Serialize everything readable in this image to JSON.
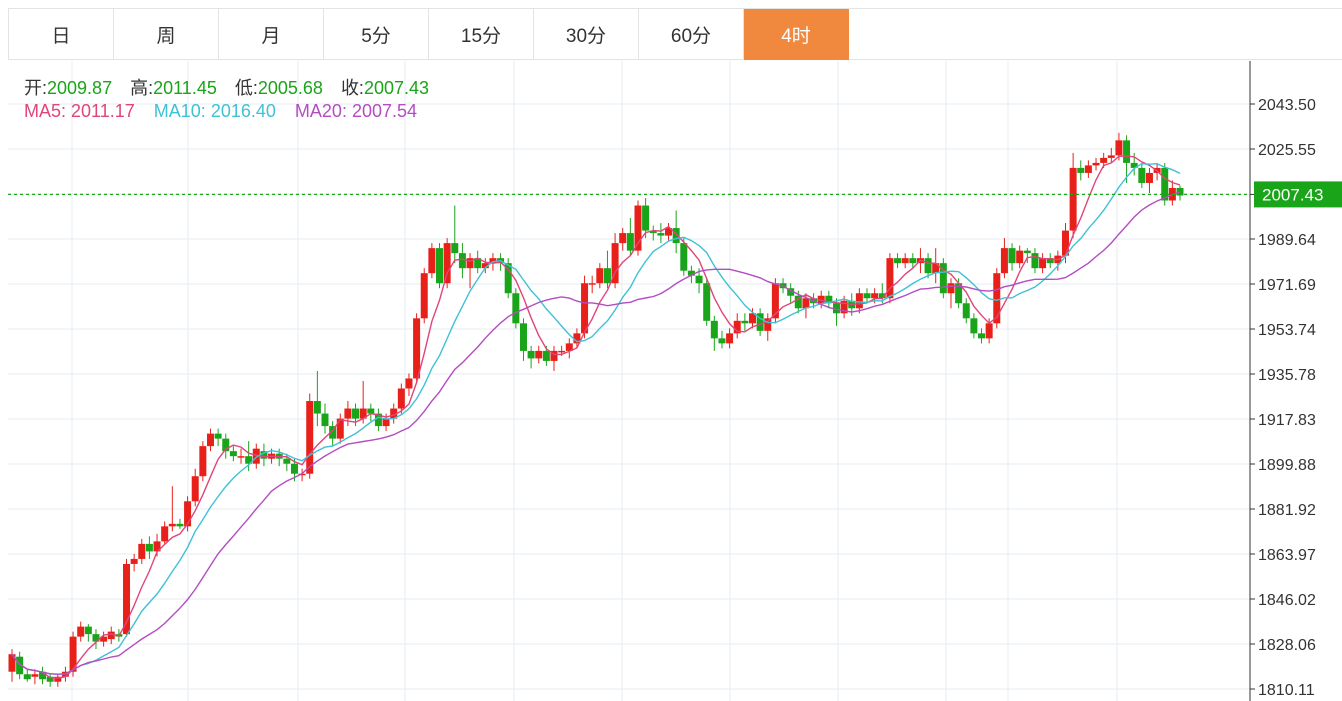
{
  "tabs": [
    {
      "label": "日",
      "active": false
    },
    {
      "label": "周",
      "active": false
    },
    {
      "label": "月",
      "active": false
    },
    {
      "label": "5分",
      "active": false
    },
    {
      "label": "15分",
      "active": false
    },
    {
      "label": "30分",
      "active": false
    },
    {
      "label": "60分",
      "active": false
    },
    {
      "label": "4时",
      "active": true
    }
  ],
  "ohlc": {
    "open_label": "开:",
    "open": "2009.87",
    "high_label": "高:",
    "high": "2011.45",
    "low_label": "低:",
    "low": "2005.68",
    "close_label": "收:",
    "close": "2007.43"
  },
  "ma": {
    "ma5_label": "MA5:",
    "ma5": "2011.17",
    "ma10_label": "MA10:",
    "ma10": "2016.40",
    "ma20_label": "MA20:",
    "ma20": "2007.54"
  },
  "colors": {
    "up": "#e8201a",
    "down": "#1aa41a",
    "ma5": "#e0457a",
    "ma10": "#3fc1d6",
    "ma20": "#b44cc2",
    "grid": "#e5ecf2",
    "active_tab": "#f0883e",
    "price_tag": "#1aa41a"
  },
  "chart_data": {
    "type": "candlestick",
    "yticks": [
      "2043.50",
      "2025.55",
      "2007.43",
      "1989.64",
      "1971.69",
      "1953.74",
      "1935.78",
      "1917.83",
      "1899.88",
      "1881.92",
      "1863.97",
      "1846.02",
      "1828.06",
      "1810.11"
    ],
    "ylim": [
      1808,
      2052
    ],
    "last_price": "2007.43",
    "candles": [
      [
        1817,
        1824,
        1813,
        1826
      ],
      [
        1823,
        1816,
        1814,
        1825
      ],
      [
        1816,
        1814,
        1813,
        1818
      ],
      [
        1815,
        1816,
        1812,
        1818
      ],
      [
        1817,
        1814,
        1812,
        1819
      ],
      [
        1815,
        1813,
        1811,
        1816
      ],
      [
        1813,
        1815,
        1811,
        1816
      ],
      [
        1815,
        1817,
        1813,
        1819
      ],
      [
        1817,
        1831,
        1815,
        1833
      ],
      [
        1831,
        1835,
        1829,
        1837
      ],
      [
        1835,
        1832,
        1829,
        1836
      ],
      [
        1832,
        1829,
        1826,
        1834
      ],
      [
        1829,
        1831,
        1827,
        1833
      ],
      [
        1830,
        1833,
        1828,
        1835
      ],
      [
        1832,
        1831,
        1829,
        1834
      ],
      [
        1832,
        1860,
        1831,
        1862
      ],
      [
        1860,
        1862,
        1857,
        1864
      ],
      [
        1862,
        1868,
        1860,
        1870
      ],
      [
        1868,
        1865,
        1862,
        1871
      ],
      [
        1865,
        1869,
        1863,
        1872
      ],
      [
        1869,
        1875,
        1868,
        1877
      ],
      [
        1875,
        1876,
        1873,
        1891
      ],
      [
        1876,
        1875,
        1874,
        1878
      ],
      [
        1875,
        1885,
        1873,
        1887
      ],
      [
        1885,
        1895,
        1883,
        1898
      ],
      [
        1895,
        1907,
        1893,
        1909
      ],
      [
        1907,
        1912,
        1905,
        1914
      ],
      [
        1912,
        1910,
        1907,
        1914
      ],
      [
        1910,
        1905,
        1902,
        1912
      ],
      [
        1905,
        1903,
        1901,
        1907
      ],
      [
        1903,
        1903,
        1900,
        1906
      ],
      [
        1903,
        1900,
        1897,
        1909
      ],
      [
        1900,
        1906,
        1898,
        1908
      ],
      [
        1905,
        1902,
        1899,
        1908
      ],
      [
        1902,
        1904,
        1900,
        1906
      ],
      [
        1904,
        1902,
        1899,
        1906
      ],
      [
        1902,
        1900,
        1897,
        1904
      ],
      [
        1900,
        1896,
        1893,
        1902
      ],
      [
        1896,
        1896,
        1893,
        1898
      ],
      [
        1896,
        1925,
        1894,
        1928
      ],
      [
        1925,
        1920,
        1915,
        1937
      ],
      [
        1920,
        1915,
        1912,
        1924
      ],
      [
        1915,
        1910,
        1907,
        1917
      ],
      [
        1910,
        1918,
        1908,
        1920
      ],
      [
        1918,
        1922,
        1915,
        1925
      ],
      [
        1922,
        1918,
        1915,
        1924
      ],
      [
        1918,
        1922,
        1916,
        1933
      ],
      [
        1922,
        1920,
        1917,
        1924
      ],
      [
        1920,
        1915,
        1913,
        1922
      ],
      [
        1915,
        1918,
        1913,
        1920
      ],
      [
        1918,
        1922,
        1916,
        1924
      ],
      [
        1922,
        1930,
        1920,
        1932
      ],
      [
        1930,
        1934,
        1927,
        1936
      ],
      [
        1934,
        1958,
        1932,
        1960
      ],
      [
        1958,
        1976,
        1956,
        1978
      ],
      [
        1976,
        1986,
        1974,
        1988
      ],
      [
        1986,
        1972,
        1970,
        1988
      ],
      [
        1972,
        1988,
        1970,
        1990
      ],
      [
        1988,
        1984,
        1980,
        2003
      ],
      [
        1984,
        1978,
        1974,
        1988
      ],
      [
        1978,
        1982,
        1970,
        1984
      ],
      [
        1982,
        1978,
        1976,
        1985
      ],
      [
        1978,
        1980,
        1976,
        1982
      ],
      [
        1980,
        1982,
        1977,
        1984
      ],
      [
        1982,
        1980,
        1977,
        1984
      ],
      [
        1980,
        1968,
        1966,
        1982
      ],
      [
        1968,
        1956,
        1954,
        1970
      ],
      [
        1956,
        1945,
        1941,
        1958
      ],
      [
        1945,
        1942,
        1938,
        1947
      ],
      [
        1942,
        1945,
        1940,
        1947
      ],
      [
        1945,
        1941,
        1939,
        1947
      ],
      [
        1941,
        1945,
        1937,
        1947
      ],
      [
        1945,
        1945,
        1943,
        1947
      ],
      [
        1945,
        1948,
        1942,
        1950
      ],
      [
        1948,
        1952,
        1946,
        1954
      ],
      [
        1952,
        1972,
        1950,
        1975
      ],
      [
        1972,
        1972,
        1968,
        1975
      ],
      [
        1972,
        1978,
        1970,
        1980
      ],
      [
        1978,
        1972,
        1970,
        1985
      ],
      [
        1972,
        1988,
        1970,
        1992
      ],
      [
        1988,
        1992,
        1985,
        1994
      ],
      [
        1992,
        1985,
        1983,
        1998
      ],
      [
        1985,
        2003,
        1983,
        2005
      ],
      [
        2003,
        1993,
        1990,
        2006
      ],
      [
        1993,
        1992,
        1989,
        1995
      ],
      [
        1992,
        1991,
        1988,
        1996
      ],
      [
        1991,
        1994,
        1989,
        1996
      ],
      [
        1994,
        1988,
        1984,
        2001
      ],
      [
        1988,
        1977,
        1975,
        1990
      ],
      [
        1977,
        1975,
        1972,
        1979
      ],
      [
        1975,
        1972,
        1968,
        1978
      ],
      [
        1972,
        1957,
        1955,
        1974
      ],
      [
        1957,
        1950,
        1945,
        1959
      ],
      [
        1950,
        1948,
        1946,
        1953
      ],
      [
        1948,
        1952,
        1946,
        1954
      ],
      [
        1952,
        1957,
        1950,
        1960
      ],
      [
        1957,
        1956,
        1953,
        1960
      ],
      [
        1956,
        1960,
        1954,
        1962
      ],
      [
        1960,
        1953,
        1951,
        1962
      ],
      [
        1953,
        1958,
        1949,
        1960
      ],
      [
        1958,
        1972,
        1956,
        1974
      ],
      [
        1972,
        1970,
        1968,
        1974
      ],
      [
        1970,
        1967,
        1964,
        1972
      ],
      [
        1967,
        1962,
        1960,
        1969
      ],
      [
        1962,
        1966,
        1958,
        1968
      ],
      [
        1966,
        1964,
        1962,
        1968
      ],
      [
        1964,
        1967,
        1962,
        1969
      ],
      [
        1967,
        1964,
        1962,
        1969
      ],
      [
        1964,
        1960,
        1955,
        1966
      ],
      [
        1960,
        1965,
        1958,
        1967
      ],
      [
        1965,
        1962,
        1959,
        1968
      ],
      [
        1962,
        1968,
        1960,
        1970
      ],
      [
        1968,
        1966,
        1964,
        1970
      ],
      [
        1966,
        1968,
        1964,
        1970
      ],
      [
        1968,
        1966,
        1964,
        1972
      ],
      [
        1966,
        1982,
        1964,
        1984
      ],
      [
        1982,
        1980,
        1978,
        1984
      ],
      [
        1980,
        1982,
        1978,
        1984
      ],
      [
        1982,
        1980,
        1978,
        1984
      ],
      [
        1980,
        1982,
        1976,
        1986
      ],
      [
        1982,
        1976,
        1974,
        1984
      ],
      [
        1976,
        1980,
        1972,
        1986
      ],
      [
        1980,
        1968,
        1966,
        1982
      ],
      [
        1968,
        1972,
        1962,
        1974
      ],
      [
        1972,
        1964,
        1962,
        1974
      ],
      [
        1964,
        1958,
        1956,
        1966
      ],
      [
        1958,
        1952,
        1950,
        1960
      ],
      [
        1952,
        1950,
        1948,
        1954
      ],
      [
        1950,
        1956,
        1948,
        1958
      ],
      [
        1956,
        1976,
        1954,
        1978
      ],
      [
        1976,
        1986,
        1974,
        1990
      ],
      [
        1986,
        1980,
        1977,
        1988
      ],
      [
        1980,
        1985,
        1978,
        1987
      ],
      [
        1985,
        1984,
        1980,
        1986
      ],
      [
        1984,
        1978,
        1976,
        1986
      ],
      [
        1978,
        1982,
        1976,
        1984
      ],
      [
        1982,
        1980,
        1978,
        1984
      ],
      [
        1980,
        1983,
        1977,
        1985
      ],
      [
        1983,
        1993,
        1980,
        1996
      ],
      [
        1993,
        2018,
        1990,
        2024
      ],
      [
        2018,
        2016,
        2013,
        2021
      ],
      [
        2016,
        2019,
        2014,
        2021
      ],
      [
        2019,
        2020,
        2017,
        2022
      ],
      [
        2020,
        2022,
        2018,
        2024
      ],
      [
        2022,
        2023,
        2020,
        2026
      ],
      [
        2023,
        2029,
        2021,
        2032
      ],
      [
        2029,
        2020,
        2012,
        2031
      ],
      [
        2020,
        2018,
        2015,
        2024
      ],
      [
        2018,
        2012,
        2010,
        2020
      ],
      [
        2012,
        2016,
        2008,
        2018
      ],
      [
        2016,
        2018,
        2013,
        2020
      ],
      [
        2018,
        2005,
        2003,
        2020
      ],
      [
        2005,
        2010,
        2003,
        2013
      ],
      [
        2010,
        2007,
        2005,
        2011
      ]
    ]
  }
}
